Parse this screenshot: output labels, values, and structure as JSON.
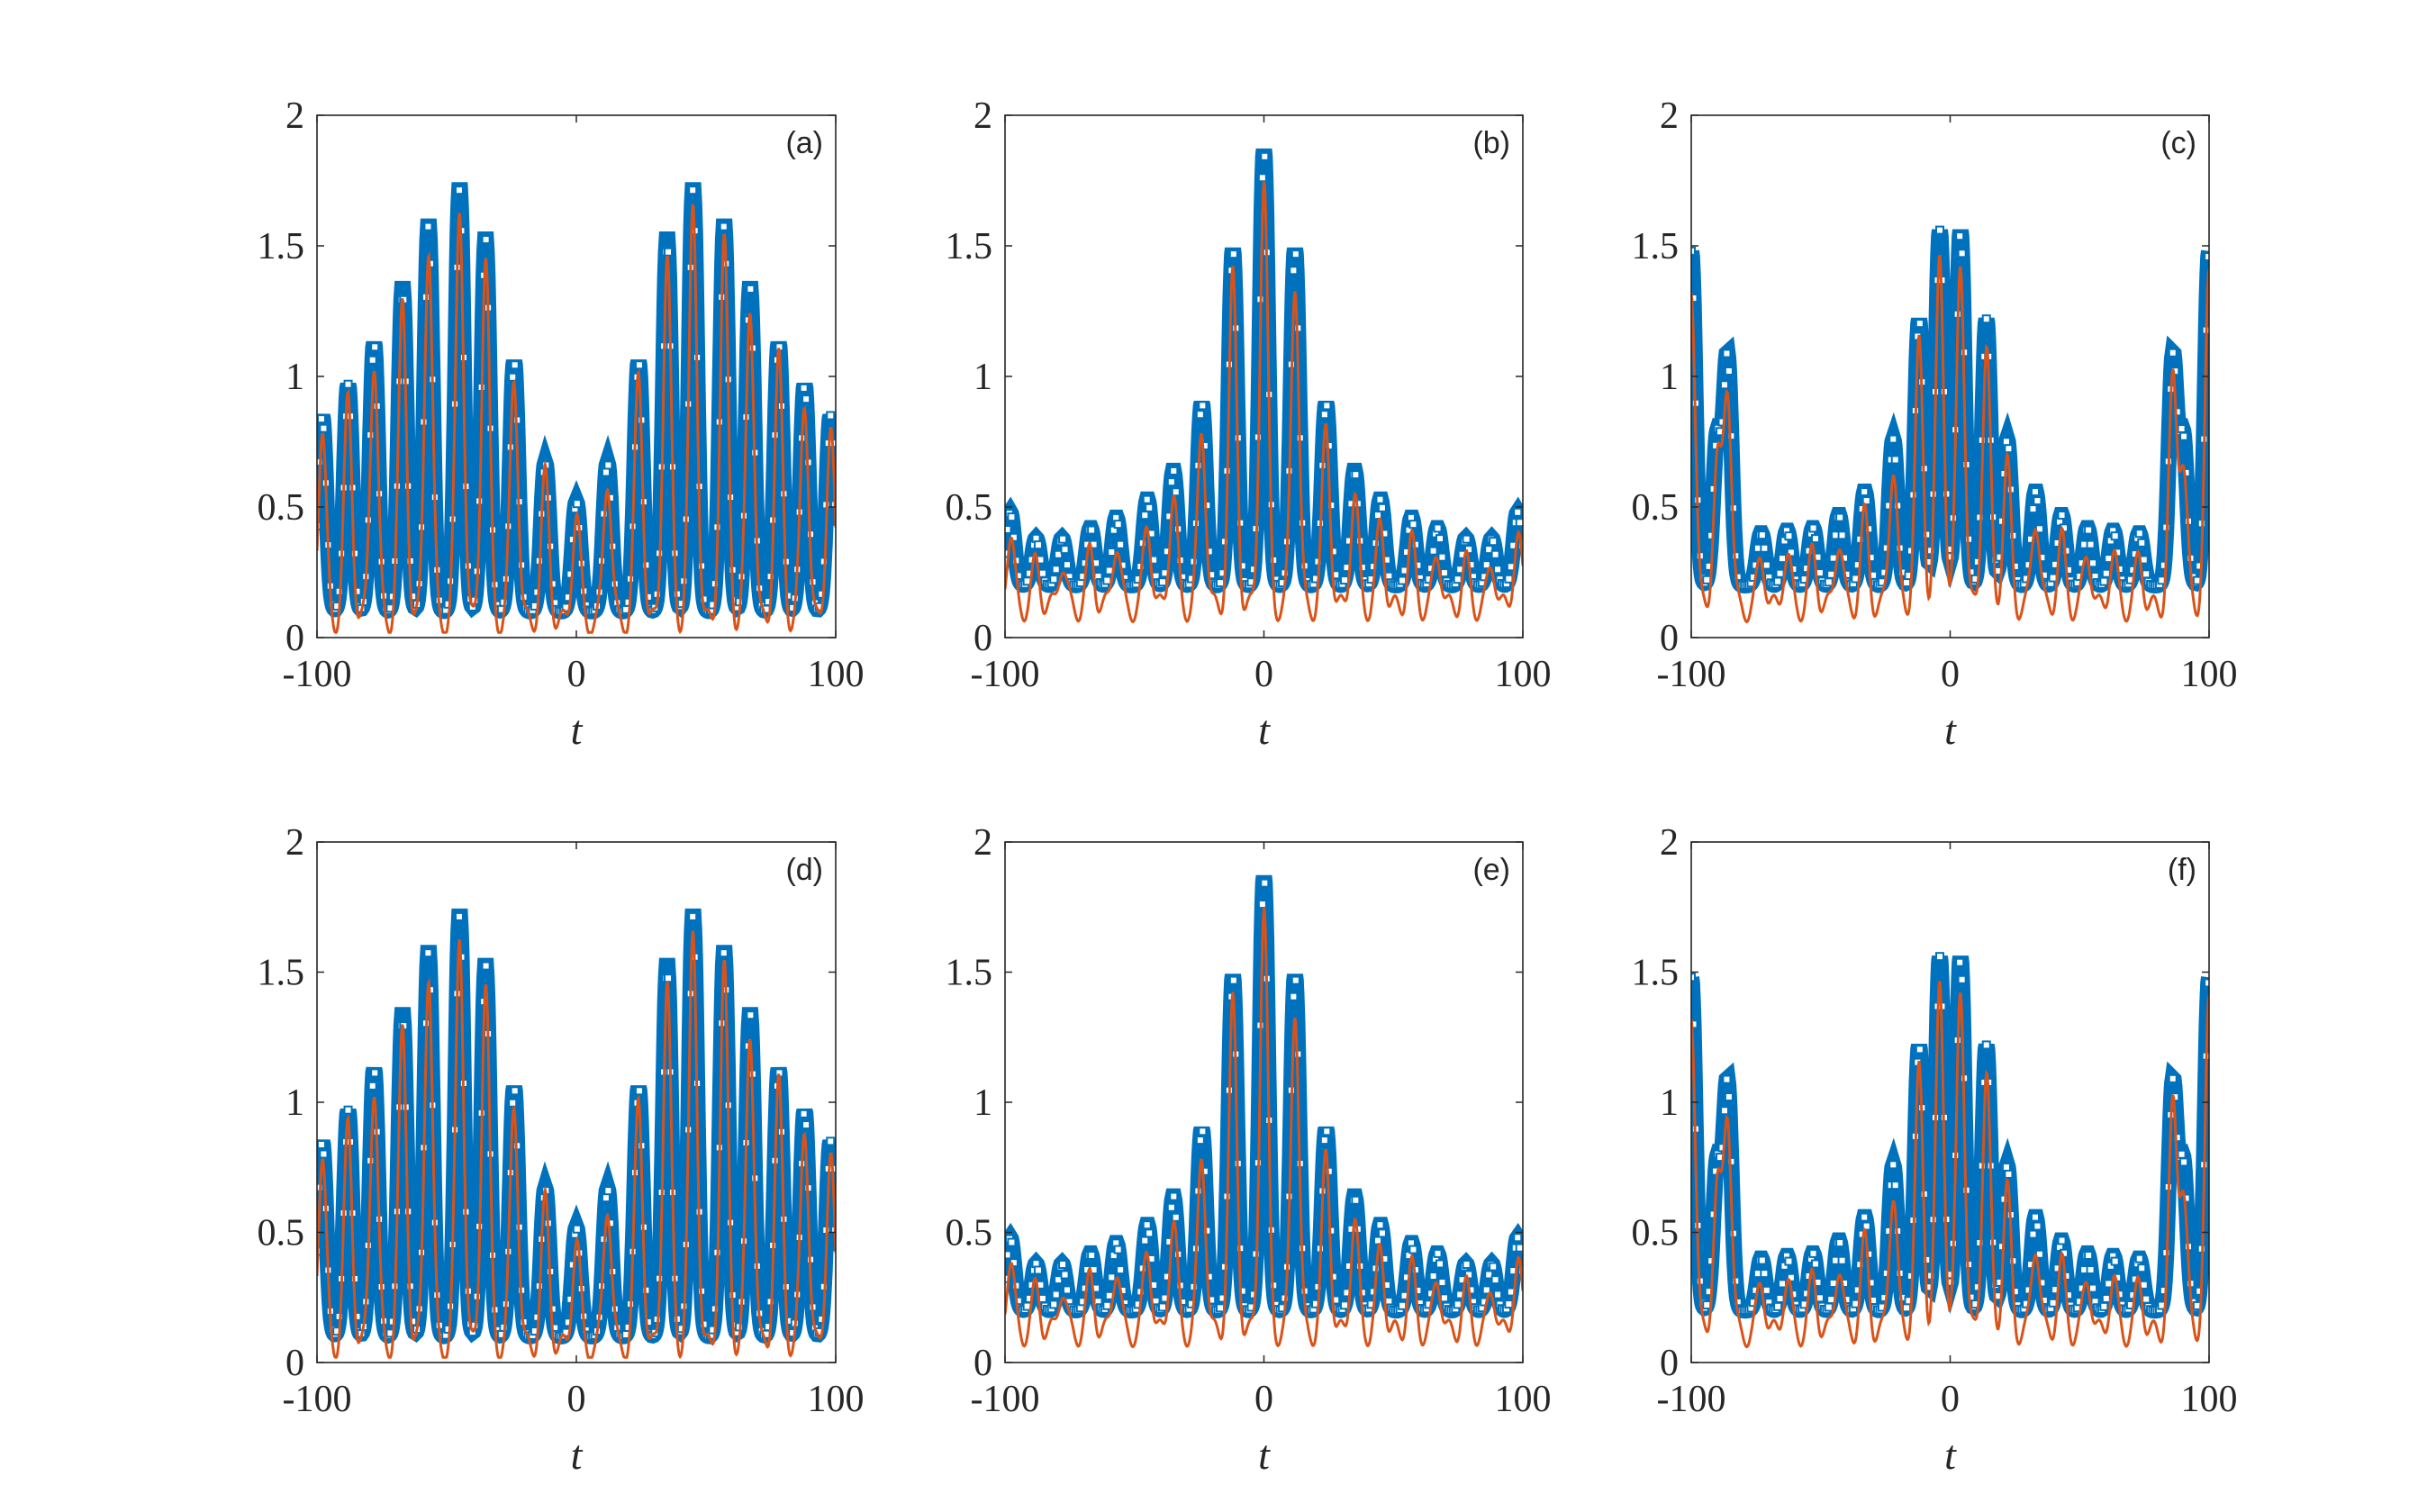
{
  "figure": {
    "colors": {
      "series_markers": "#0072BD",
      "series_line": "#D95319",
      "axes": "#262626"
    },
    "x_ticks": [
      "-100",
      "0",
      "100"
    ],
    "y_ticks": [
      "0",
      "0.5",
      "1",
      "1.5",
      "2"
    ],
    "xlabel": "t"
  },
  "chart_data": [
    {
      "panel_label": "(a)",
      "type": "line",
      "xlabel": "t",
      "xlim": [
        -100,
        100
      ],
      "ylim": [
        0,
        2
      ],
      "grid": false,
      "legend": "none",
      "envelope": "twin_hump",
      "x": [
        -100,
        -90,
        -80,
        -70,
        -60,
        -50,
        -40,
        -30,
        -20,
        -10,
        0,
        10,
        20,
        30,
        40,
        50,
        60,
        70,
        80,
        90,
        100
      ],
      "peaks": {
        "x": [
          -98,
          -88,
          -78,
          -67,
          -57,
          -45,
          -35,
          -24,
          -12,
          0,
          12,
          24,
          35,
          45,
          57,
          67,
          78,
          88,
          98
        ],
        "y": [
          0.85,
          0.97,
          1.13,
          1.34,
          1.58,
          1.72,
          1.53,
          1.06,
          0.67,
          0.52,
          0.67,
          1.06,
          1.53,
          1.72,
          1.58,
          1.34,
          1.13,
          0.97,
          0.85
        ]
      },
      "baseline": 0.1,
      "series": [
        {
          "name": "",
          "style": "square-markers",
          "color": "#0072BD"
        },
        {
          "name": "",
          "style": "line",
          "color": "#D95319"
        }
      ]
    },
    {
      "panel_label": "(b)",
      "type": "line",
      "xlabel": "t",
      "xlim": [
        -100,
        100
      ],
      "ylim": [
        0,
        2
      ],
      "grid": false,
      "legend": "none",
      "envelope": "central_peak",
      "peaks": {
        "x": [
          -98,
          -88,
          -78,
          -67,
          -57,
          -45,
          -35,
          -24,
          -12,
          0,
          12,
          24,
          35,
          45,
          57,
          67,
          78,
          88,
          98
        ],
        "y": [
          0.48,
          0.38,
          0.38,
          0.42,
          0.46,
          0.53,
          0.64,
          0.9,
          1.49,
          1.87,
          1.49,
          0.9,
          0.64,
          0.53,
          0.46,
          0.42,
          0.38,
          0.38,
          0.48
        ]
      },
      "baseline": 0.2,
      "series": [
        {
          "name": "",
          "style": "square-markers",
          "color": "#0072BD"
        },
        {
          "name": "",
          "style": "line",
          "color": "#D95319"
        }
      ]
    },
    {
      "panel_label": "(c)",
      "type": "line",
      "xlabel": "t",
      "xlim": [
        -100,
        100
      ],
      "ylim": [
        0,
        2
      ],
      "grid": false,
      "legend": "none",
      "envelope": "central_peak_with_edge_bursts",
      "peaks": {
        "x": [
          -100,
          -90,
          -86,
          -73,
          -63,
          -53,
          -43,
          -33,
          -22,
          -12,
          -4,
          4,
          14,
          22,
          33,
          43,
          53,
          63,
          73,
          86,
          90,
          100
        ],
        "y": [
          1.48,
          0.76,
          1.07,
          0.4,
          0.41,
          0.42,
          0.47,
          0.56,
          0.76,
          1.22,
          1.56,
          1.56,
          1.22,
          0.76,
          0.56,
          0.47,
          0.42,
          0.41,
          0.4,
          1.07,
          0.76,
          1.48
        ]
      },
      "baseline": 0.2,
      "series": [
        {
          "name": "",
          "style": "square-markers",
          "color": "#0072BD"
        },
        {
          "name": "",
          "style": "line",
          "color": "#D95319"
        }
      ]
    },
    {
      "panel_label": "(d)",
      "type": "line",
      "xlabel": "t",
      "xlim": [
        -100,
        100
      ],
      "ylim": [
        0,
        2
      ],
      "grid": false,
      "legend": "none",
      "envelope": "twin_hump",
      "peaks": {
        "x": [
          -98,
          -88,
          -78,
          -67,
          -57,
          -45,
          -35,
          -24,
          -12,
          0,
          12,
          24,
          35,
          45,
          57,
          67,
          78,
          88,
          98
        ],
        "y": [
          0.85,
          0.97,
          1.13,
          1.34,
          1.58,
          1.72,
          1.53,
          1.06,
          0.67,
          0.52,
          0.67,
          1.06,
          1.53,
          1.72,
          1.58,
          1.34,
          1.13,
          0.97,
          0.85
        ]
      },
      "baseline": 0.1,
      "series": [
        {
          "name": "",
          "style": "square-markers",
          "color": "#0072BD"
        },
        {
          "name": "",
          "style": "line",
          "color": "#D95319"
        }
      ]
    },
    {
      "panel_label": "(e)",
      "type": "line",
      "xlabel": "t",
      "xlim": [
        -100,
        100
      ],
      "ylim": [
        0,
        2
      ],
      "grid": false,
      "legend": "none",
      "envelope": "central_peak",
      "peaks": {
        "x": [
          -98,
          -88,
          -78,
          -67,
          -57,
          -45,
          -35,
          -24,
          -12,
          0,
          12,
          24,
          35,
          45,
          57,
          67,
          78,
          88,
          98
        ],
        "y": [
          0.48,
          0.38,
          0.38,
          0.42,
          0.46,
          0.53,
          0.64,
          0.9,
          1.49,
          1.87,
          1.49,
          0.9,
          0.64,
          0.53,
          0.46,
          0.42,
          0.38,
          0.38,
          0.48
        ]
      },
      "baseline": 0.2,
      "series": [
        {
          "name": "",
          "style": "square-markers",
          "color": "#0072BD"
        },
        {
          "name": "",
          "style": "line",
          "color": "#D95319"
        }
      ]
    },
    {
      "panel_label": "(f)",
      "type": "line",
      "xlabel": "t",
      "xlim": [
        -100,
        100
      ],
      "ylim": [
        0,
        2
      ],
      "grid": false,
      "legend": "none",
      "envelope": "central_peak_with_edge_bursts",
      "peaks": {
        "x": [
          -100,
          -90,
          -86,
          -73,
          -63,
          -53,
          -43,
          -33,
          -22,
          -12,
          -4,
          4,
          14,
          22,
          33,
          43,
          53,
          63,
          73,
          86,
          90,
          100
        ],
        "y": [
          1.48,
          0.76,
          1.07,
          0.4,
          0.41,
          0.42,
          0.47,
          0.56,
          0.76,
          1.22,
          1.56,
          1.56,
          1.22,
          0.76,
          0.56,
          0.47,
          0.42,
          0.41,
          0.4,
          1.07,
          0.76,
          1.48
        ]
      },
      "baseline": 0.2,
      "series": [
        {
          "name": "",
          "style": "square-markers",
          "color": "#0072BD"
        },
        {
          "name": "",
          "style": "line",
          "color": "#D95319"
        }
      ]
    }
  ]
}
